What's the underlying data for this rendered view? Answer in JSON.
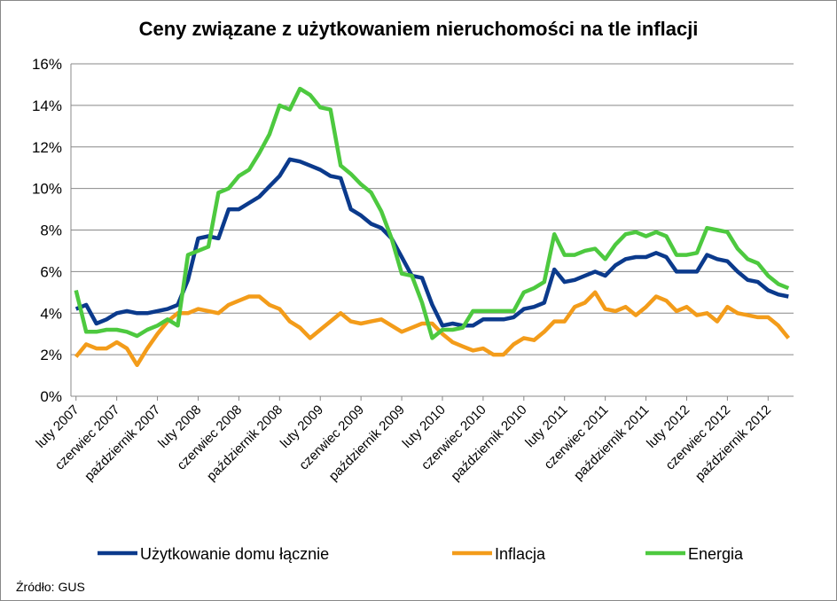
{
  "chart_data": {
    "type": "line",
    "title": "Ceny związane z użytkowaniem nieruchomości na tle inflacji",
    "source": "Źródło: GUS",
    "categories": [
      "luty 2007",
      null,
      null,
      null,
      "czerwiec 2007",
      null,
      null,
      null,
      "październik 2007",
      null,
      null,
      null,
      "luty 2008",
      null,
      null,
      null,
      "czerwiec 2008",
      null,
      null,
      null,
      "październik 2008",
      null,
      null,
      null,
      "luty 2009",
      null,
      null,
      null,
      "czerwiec 2009",
      null,
      null,
      null,
      "październik 2009",
      null,
      null,
      null,
      "luty 2010",
      null,
      null,
      null,
      "czerwiec 2010",
      null,
      null,
      null,
      "październik 2010",
      null,
      null,
      null,
      "luty 2011",
      null,
      null,
      null,
      "czerwiec 2011",
      null,
      null,
      null,
      "październik 2011",
      null,
      null,
      null,
      "luty 2012",
      null,
      null,
      null,
      "czerwiec 2012",
      null,
      null,
      null,
      "październik 2012",
      null,
      null
    ],
    "series": [
      {
        "name": "Użytkowanie domu łącznie",
        "color": "#0b3a8c",
        "values": [
          4.2,
          4.4,
          3.5,
          3.7,
          4.0,
          4.1,
          4.0,
          4.0,
          4.1,
          4.2,
          4.4,
          5.6,
          7.6,
          7.7,
          7.6,
          9.0,
          9.0,
          9.3,
          9.6,
          10.1,
          10.6,
          11.4,
          11.3,
          11.1,
          10.9,
          10.6,
          10.5,
          9.0,
          8.7,
          8.3,
          8.1,
          7.6,
          6.7,
          5.8,
          5.7,
          4.4,
          3.4,
          3.5,
          3.4,
          3.4,
          3.7,
          3.7,
          3.7,
          3.8,
          4.2,
          4.3,
          4.5,
          6.1,
          5.5,
          5.6,
          5.8,
          6.0,
          5.8,
          6.3,
          6.6,
          6.7,
          6.7,
          6.9,
          6.7,
          6.0,
          6.0,
          6.0,
          6.8,
          6.6,
          6.5,
          6.0,
          5.6,
          5.5,
          5.1,
          4.9,
          4.8
        ]
      },
      {
        "name": "Inflacja",
        "color": "#f39c1a",
        "values": [
          1.9,
          2.5,
          2.3,
          2.3,
          2.6,
          2.3,
          1.5,
          2.3,
          3.0,
          3.6,
          4.0,
          4.0,
          4.2,
          4.1,
          4.0,
          4.4,
          4.6,
          4.8,
          4.8,
          4.4,
          4.2,
          3.6,
          3.3,
          2.8,
          3.2,
          3.6,
          4.0,
          3.6,
          3.5,
          3.6,
          3.7,
          3.4,
          3.1,
          3.3,
          3.5,
          3.5,
          3.0,
          2.6,
          2.4,
          2.2,
          2.3,
          2.0,
          2.0,
          2.5,
          2.8,
          2.7,
          3.1,
          3.6,
          3.6,
          4.3,
          4.5,
          5.0,
          4.2,
          4.1,
          4.3,
          3.9,
          4.3,
          4.8,
          4.6,
          4.1,
          4.3,
          3.9,
          4.0,
          3.6,
          4.3,
          4.0,
          3.9,
          3.8,
          3.8,
          3.4,
          2.8
        ]
      },
      {
        "name": "Energia",
        "color": "#4dc93f",
        "values": [
          5.1,
          3.1,
          3.1,
          3.2,
          3.2,
          3.1,
          2.9,
          3.2,
          3.4,
          3.7,
          3.4,
          6.8,
          7.0,
          7.2,
          9.8,
          10.0,
          10.6,
          10.9,
          11.7,
          12.6,
          14.0,
          13.8,
          14.8,
          14.5,
          13.9,
          13.8,
          11.1,
          10.7,
          10.2,
          9.8,
          8.9,
          7.6,
          5.9,
          5.8,
          4.5,
          2.8,
          3.2,
          3.2,
          3.3,
          4.1,
          4.1,
          4.1,
          4.1,
          4.1,
          5.0,
          5.2,
          5.5,
          7.8,
          6.8,
          6.8,
          7.0,
          7.1,
          6.6,
          7.3,
          7.8,
          7.9,
          7.7,
          7.9,
          7.7,
          6.8,
          6.8,
          6.9,
          8.1,
          8.0,
          7.9,
          7.1,
          6.6,
          6.4,
          5.8,
          5.4,
          5.2
        ]
      }
    ],
    "ylim": [
      0,
      16
    ],
    "yticks": [
      {
        "value": 0,
        "label": "0%"
      },
      {
        "value": 2,
        "label": "2%"
      },
      {
        "value": 4,
        "label": "4%"
      },
      {
        "value": 6,
        "label": "6%"
      },
      {
        "value": 8,
        "label": "8%"
      },
      {
        "value": 10,
        "label": "10%"
      },
      {
        "value": 12,
        "label": "12%"
      },
      {
        "value": 14,
        "label": "14%"
      },
      {
        "value": 16,
        "label": "16%"
      }
    ],
    "grid": true,
    "legend": "bottom"
  }
}
